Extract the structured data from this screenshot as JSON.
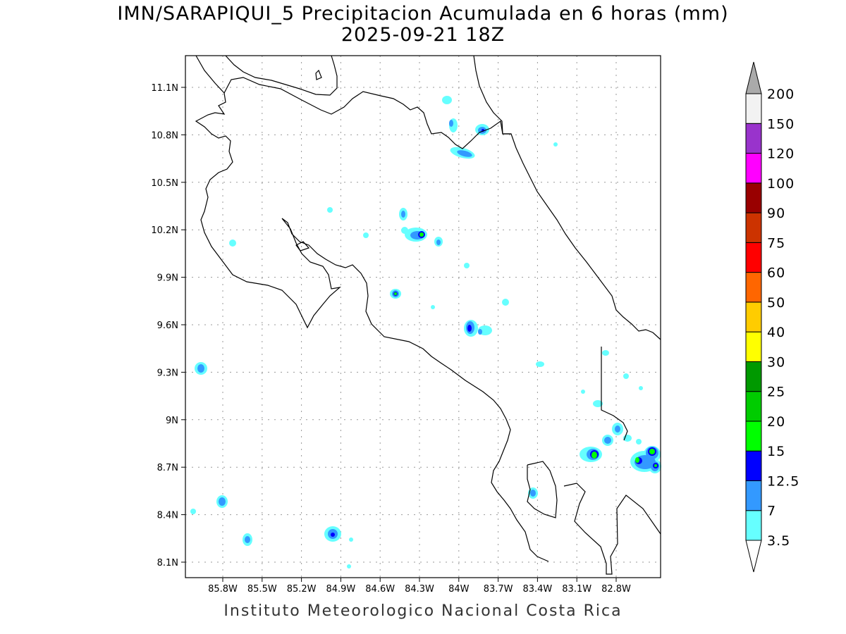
{
  "title": {
    "line1": "IMN/SARAPIQUI_5 Precipitacion Acumulada en 6 horas (mm)",
    "line2": "2025-09-21 18Z"
  },
  "footer": "Instituto Meteorologico Nacional Costa Rica",
  "map": {
    "lon_ticks": [
      "85.8W",
      "85.5W",
      "85.2W",
      "84.9W",
      "84.6W",
      "84.3W",
      "84W",
      "83.7W",
      "83.4W",
      "83.1W",
      "82.8W"
    ],
    "lat_ticks": [
      "11.1N",
      "10.8N",
      "10.5N",
      "10.2N",
      "9.9N",
      "9.6N",
      "9.3N",
      "9N",
      "8.7N",
      "8.4N",
      "8.1N"
    ],
    "lon_range": [
      -86.08,
      -82.46
    ],
    "lat_range": [
      8.0,
      11.3
    ]
  },
  "colorbar": {
    "labels": [
      "3.5",
      "7",
      "12.5",
      "15",
      "20",
      "25",
      "30",
      "40",
      "50",
      "60",
      "75",
      "90",
      "100",
      "120",
      "150",
      "200"
    ],
    "colors": [
      "#66ffff",
      "#3399ff",
      "#0000ff",
      "#00ff00",
      "#00cc00",
      "#009900",
      "#ffff00",
      "#ffcc00",
      "#ff6600",
      "#ff0000",
      "#cc3300",
      "#990000",
      "#ff00ff",
      "#9933cc",
      "#f2f2f2"
    ],
    "over_color": "#aaaaaa",
    "under_color": "#ffffff"
  }
}
